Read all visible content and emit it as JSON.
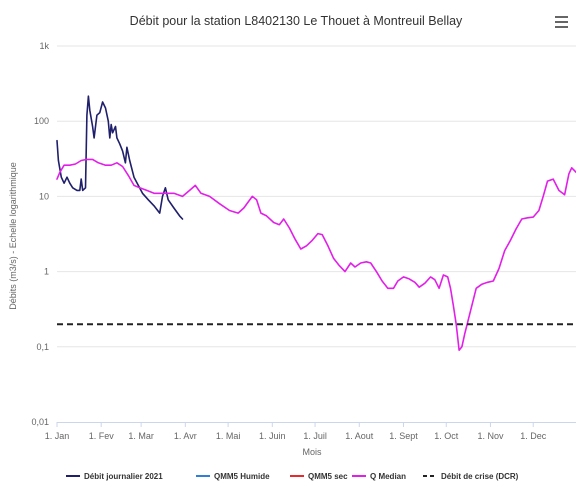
{
  "chart_data": {
    "type": "line",
    "title": "Débit pour la station L8402130 Le Thouet à Montreuil Bellay",
    "xlabel": "Mois",
    "ylabel": "Débits (m3/s) - Echelle logarithmique",
    "y_scale": "log",
    "ylim": [
      0.01,
      1000
    ],
    "xlim": [
      "2021-01-01",
      "2021-12-31"
    ],
    "y_ticks": [
      {
        "value": 0.01,
        "label": "0,01"
      },
      {
        "value": 0.1,
        "label": "0,1"
      },
      {
        "value": 1,
        "label": "1"
      },
      {
        "value": 10,
        "label": "10"
      },
      {
        "value": 100,
        "label": "100"
      },
      {
        "value": 1000,
        "label": "1k"
      }
    ],
    "x_ticks": [
      {
        "date": "2021-01-01",
        "label": "1. Jan"
      },
      {
        "date": "2021-02-01",
        "label": "1. Fev"
      },
      {
        "date": "2021-03-01",
        "label": "1. Mar"
      },
      {
        "date": "2021-04-01",
        "label": "1. Avr"
      },
      {
        "date": "2021-05-01",
        "label": "1. Mai"
      },
      {
        "date": "2021-06-01",
        "label": "1. Juin"
      },
      {
        "date": "2021-07-01",
        "label": "1. Juil"
      },
      {
        "date": "2021-08-01",
        "label": "1. Aout"
      },
      {
        "date": "2021-09-01",
        "label": "1. Sept"
      },
      {
        "date": "2021-10-01",
        "label": "1. Oct"
      },
      {
        "date": "2021-11-01",
        "label": "1. Nov"
      },
      {
        "date": "2021-12-01",
        "label": "1. Dec"
      }
    ],
    "grid": true,
    "legend_position": "bottom",
    "series": [
      {
        "name": "Débit journalier 2021",
        "color": "#1f1f6b",
        "style": "solid",
        "points": [
          [
            "2021-01-01",
            55
          ],
          [
            "2021-01-02",
            30
          ],
          [
            "2021-01-04",
            18
          ],
          [
            "2021-01-06",
            15
          ],
          [
            "2021-01-08",
            18
          ],
          [
            "2021-01-10",
            15
          ],
          [
            "2021-01-12",
            13
          ],
          [
            "2021-01-15",
            12
          ],
          [
            "2021-01-17",
            12
          ],
          [
            "2021-01-18",
            17
          ],
          [
            "2021-01-19",
            12
          ],
          [
            "2021-01-21",
            13
          ],
          [
            "2021-01-22",
            120
          ],
          [
            "2021-01-23",
            215
          ],
          [
            "2021-01-24",
            140
          ],
          [
            "2021-01-26",
            85
          ],
          [
            "2021-01-27",
            60
          ],
          [
            "2021-01-29",
            120
          ],
          [
            "2021-01-31",
            130
          ],
          [
            "2021-02-02",
            180
          ],
          [
            "2021-02-04",
            150
          ],
          [
            "2021-02-06",
            100
          ],
          [
            "2021-02-07",
            60
          ],
          [
            "2021-02-08",
            90
          ],
          [
            "2021-02-09",
            70
          ],
          [
            "2021-02-11",
            85
          ],
          [
            "2021-02-12",
            60
          ],
          [
            "2021-02-14",
            50
          ],
          [
            "2021-02-16",
            40
          ],
          [
            "2021-02-18",
            28
          ],
          [
            "2021-02-19",
            45
          ],
          [
            "2021-02-21",
            30
          ],
          [
            "2021-02-24",
            18
          ],
          [
            "2021-02-27",
            14
          ],
          [
            "2021-03-02",
            11
          ],
          [
            "2021-03-06",
            9
          ],
          [
            "2021-03-10",
            7.5
          ],
          [
            "2021-03-14",
            6
          ],
          [
            "2021-03-16",
            10
          ],
          [
            "2021-03-18",
            13
          ],
          [
            "2021-03-20",
            9
          ],
          [
            "2021-03-24",
            7
          ],
          [
            "2021-03-28",
            5.5
          ],
          [
            "2021-03-30",
            5
          ]
        ]
      },
      {
        "name": "QMM5 Humide",
        "color": "#2f7ed8",
        "style": "solid",
        "points": []
      },
      {
        "name": "QMM5 sec",
        "color": "#e8292e",
        "style": "solid",
        "points": []
      },
      {
        "name": "Q Median",
        "color": "#e21fe8",
        "style": "solid",
        "points": [
          [
            "2021-01-01",
            17
          ],
          [
            "2021-01-03",
            21
          ],
          [
            "2021-01-06",
            26
          ],
          [
            "2021-01-10",
            26
          ],
          [
            "2021-01-14",
            27
          ],
          [
            "2021-01-18",
            30
          ],
          [
            "2021-01-22",
            31
          ],
          [
            "2021-01-26",
            31
          ],
          [
            "2021-01-30",
            28
          ],
          [
            "2021-02-04",
            26
          ],
          [
            "2021-02-08",
            26
          ],
          [
            "2021-02-12",
            28
          ],
          [
            "2021-02-16",
            25
          ],
          [
            "2021-02-20",
            19
          ],
          [
            "2021-02-24",
            14
          ],
          [
            "2021-02-28",
            13
          ],
          [
            "2021-03-05",
            12
          ],
          [
            "2021-03-10",
            11
          ],
          [
            "2021-03-18",
            11
          ],
          [
            "2021-03-24",
            11
          ],
          [
            "2021-03-30",
            10
          ],
          [
            "2021-04-04",
            12
          ],
          [
            "2021-04-08",
            14
          ],
          [
            "2021-04-12",
            11
          ],
          [
            "2021-04-18",
            10
          ],
          [
            "2021-04-25",
            8
          ],
          [
            "2021-05-02",
            6.5
          ],
          [
            "2021-05-08",
            6
          ],
          [
            "2021-05-12",
            7
          ],
          [
            "2021-05-18",
            10
          ],
          [
            "2021-05-21",
            9
          ],
          [
            "2021-05-24",
            6
          ],
          [
            "2021-05-28",
            5.5
          ],
          [
            "2021-06-02",
            4.5
          ],
          [
            "2021-06-06",
            4.2
          ],
          [
            "2021-06-09",
            5
          ],
          [
            "2021-06-13",
            3.8
          ],
          [
            "2021-06-17",
            2.7
          ],
          [
            "2021-06-21",
            2
          ],
          [
            "2021-06-25",
            2.2
          ],
          [
            "2021-06-29",
            2.6
          ],
          [
            "2021-07-03",
            3.2
          ],
          [
            "2021-07-06",
            3.1
          ],
          [
            "2021-07-10",
            2.2
          ],
          [
            "2021-07-14",
            1.5
          ],
          [
            "2021-07-18",
            1.2
          ],
          [
            "2021-07-22",
            1.0
          ],
          [
            "2021-07-26",
            1.3
          ],
          [
            "2021-07-29",
            1.15
          ],
          [
            "2021-08-02",
            1.3
          ],
          [
            "2021-08-06",
            1.35
          ],
          [
            "2021-08-09",
            1.3
          ],
          [
            "2021-08-13",
            1.0
          ],
          [
            "2021-08-17",
            0.75
          ],
          [
            "2021-08-21",
            0.6
          ],
          [
            "2021-08-25",
            0.6
          ],
          [
            "2021-08-28",
            0.75
          ],
          [
            "2021-09-01",
            0.85
          ],
          [
            "2021-09-05",
            0.8
          ],
          [
            "2021-09-09",
            0.72
          ],
          [
            "2021-09-12",
            0.62
          ],
          [
            "2021-09-16",
            0.7
          ],
          [
            "2021-09-20",
            0.85
          ],
          [
            "2021-09-23",
            0.78
          ],
          [
            "2021-09-26",
            0.6
          ],
          [
            "2021-09-29",
            0.9
          ],
          [
            "2021-10-02",
            0.85
          ],
          [
            "2021-10-04",
            0.6
          ],
          [
            "2021-10-06",
            0.35
          ],
          [
            "2021-10-08",
            0.2
          ],
          [
            "2021-10-10",
            0.09
          ],
          [
            "2021-10-12",
            0.1
          ],
          [
            "2021-10-14",
            0.15
          ],
          [
            "2021-10-18",
            0.3
          ],
          [
            "2021-10-22",
            0.6
          ],
          [
            "2021-10-26",
            0.68
          ],
          [
            "2021-10-30",
            0.72
          ],
          [
            "2021-11-03",
            0.75
          ],
          [
            "2021-11-07",
            1.1
          ],
          [
            "2021-11-11",
            1.9
          ],
          [
            "2021-11-15",
            2.6
          ],
          [
            "2021-11-19",
            3.7
          ],
          [
            "2021-11-23",
            5
          ],
          [
            "2021-11-27",
            5.2
          ],
          [
            "2021-12-01",
            5.3
          ],
          [
            "2021-12-05",
            6.5
          ],
          [
            "2021-12-08",
            10
          ],
          [
            "2021-12-11",
            16
          ],
          [
            "2021-12-15",
            17
          ],
          [
            "2021-12-19",
            12
          ],
          [
            "2021-12-23",
            10.5
          ],
          [
            "2021-12-26",
            20
          ],
          [
            "2021-12-28",
            24
          ],
          [
            "2021-12-31",
            21
          ]
        ]
      },
      {
        "name": "Débit de crise (DCR)",
        "color": "#222222",
        "style": "dashed",
        "points": [
          [
            "2021-01-01",
            0.2
          ],
          [
            "2021-12-31",
            0.2
          ]
        ]
      }
    ]
  }
}
